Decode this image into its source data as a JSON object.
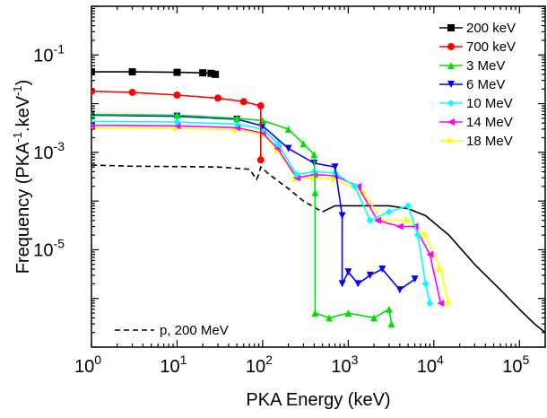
{
  "chart_data": {
    "type": "line",
    "title": "",
    "xlabel": "PKA Energy (keV)",
    "ylabel": {
      "before": "Frequency (PKA",
      "sup1": "-1",
      "middle": ".keV",
      "sup2": "-1",
      "after": ")"
    },
    "xscale": "log",
    "yscale": "log",
    "xlim": [
      1,
      200000
    ],
    "ylim": [
      1e-07,
      1
    ],
    "x_ticks": [
      {
        "value": 1,
        "base": "10",
        "exp": "0"
      },
      {
        "value": 10,
        "base": "10",
        "exp": "1"
      },
      {
        "value": 100,
        "base": "10",
        "exp": "2"
      },
      {
        "value": 1000,
        "base": "10",
        "exp": "3"
      },
      {
        "value": 10000,
        "base": "10",
        "exp": "4"
      },
      {
        "value": 100000,
        "base": "10",
        "exp": "5"
      }
    ],
    "y_ticks": [
      {
        "value": 0.1,
        "base": "10",
        "exp": "-1"
      },
      {
        "value": 0.001,
        "base": "10",
        "exp": "-3"
      },
      {
        "value": 1e-05,
        "base": "10",
        "exp": "-5"
      }
    ],
    "legend_position": "top-right",
    "series": [
      {
        "name": "200 keV",
        "color": "#000000",
        "marker": "square",
        "points": [
          [
            1,
            0.045
          ],
          [
            3,
            0.045
          ],
          [
            10,
            0.044
          ],
          [
            20,
            0.043
          ],
          [
            25,
            0.042
          ],
          [
            28,
            0.04
          ]
        ]
      },
      {
        "name": "700 keV",
        "color": "#ff0000",
        "marker": "circle",
        "points": [
          [
            1,
            0.018
          ],
          [
            3,
            0.017
          ],
          [
            10,
            0.015
          ],
          [
            30,
            0.013
          ],
          [
            60,
            0.011
          ],
          [
            95,
            0.009
          ],
          [
            95,
            0.0007
          ]
        ]
      },
      {
        "name": "3 MeV",
        "color": "#00e000",
        "marker": "triangle-up",
        "points": [
          [
            1,
            0.006
          ],
          [
            10,
            0.0058
          ],
          [
            50,
            0.005
          ],
          [
            100,
            0.0045
          ],
          [
            200,
            0.003
          ],
          [
            300,
            0.0015
          ],
          [
            400,
            0.0009
          ],
          [
            410,
            0.00015
          ],
          [
            410,
            5e-07
          ],
          [
            600,
            4e-07
          ],
          [
            1000,
            5e-07
          ],
          [
            2000,
            4e-07
          ],
          [
            3000,
            6e-07
          ],
          [
            3200,
            3e-07
          ]
        ]
      },
      {
        "name": "6 MeV",
        "color": "#0000ff",
        "marker": "triangle-down",
        "points": [
          [
            1,
            0.0058
          ],
          [
            10,
            0.0055
          ],
          [
            50,
            0.0048
          ],
          [
            100,
            0.0035
          ],
          [
            200,
            0.0012
          ],
          [
            400,
            0.0006
          ],
          [
            700,
            0.0005
          ],
          [
            850,
            5e-05
          ],
          [
            850,
            2e-06
          ],
          [
            1000,
            3.5e-06
          ],
          [
            1300,
            2e-06
          ],
          [
            1800,
            3e-06
          ],
          [
            2500,
            4e-06
          ],
          [
            4000,
            1.5e-06
          ],
          [
            6000,
            2.5e-06
          ]
        ]
      },
      {
        "name": "10 MeV",
        "color": "#00ffff",
        "marker": "diamond",
        "points": [
          [
            1,
            0.0043
          ],
          [
            10,
            0.0042
          ],
          [
            50,
            0.0038
          ],
          [
            100,
            0.003
          ],
          [
            150,
            0.0015
          ],
          [
            250,
            0.00035
          ],
          [
            400,
            0.0004
          ],
          [
            700,
            0.00038
          ],
          [
            1200,
            0.0002
          ],
          [
            1800,
            4e-05
          ],
          [
            3000,
            6e-05
          ],
          [
            5000,
            8e-05
          ],
          [
            6500,
            2e-05
          ],
          [
            8000,
            2e-06
          ],
          [
            9000,
            8e-07
          ]
        ]
      },
      {
        "name": "14 MeV",
        "color": "#ff00ff",
        "marker": "triangle-left",
        "points": [
          [
            1,
            0.0036
          ],
          [
            10,
            0.0035
          ],
          [
            50,
            0.0032
          ],
          [
            100,
            0.0025
          ],
          [
            150,
            0.0012
          ],
          [
            250,
            0.0003
          ],
          [
            400,
            0.00035
          ],
          [
            700,
            0.00033
          ],
          [
            1300,
            0.0002
          ],
          [
            2200,
            4e-05
          ],
          [
            4000,
            3e-05
          ],
          [
            6000,
            3e-05
          ],
          [
            9000,
            8e-06
          ],
          [
            12000,
            8e-07
          ]
        ]
      },
      {
        "name": "18 MeV",
        "color": "#ffff00",
        "marker": "triangle-right",
        "points": [
          [
            1,
            0.0032
          ],
          [
            10,
            0.0031
          ],
          [
            50,
            0.0029
          ],
          [
            100,
            0.0023
          ],
          [
            150,
            0.0011
          ],
          [
            250,
            0.00028
          ],
          [
            400,
            0.0003
          ],
          [
            700,
            0.00028
          ],
          [
            1500,
            0.00015
          ],
          [
            2500,
            4e-05
          ],
          [
            5000,
            4e-05
          ],
          [
            8000,
            2e-05
          ],
          [
            12000,
            4e-06
          ],
          [
            15000,
            8e-07
          ]
        ]
      },
      {
        "name": "p, 200 MeV",
        "color": "#000000",
        "marker": "none",
        "dash": true,
        "points": [
          [
            1,
            0.00055
          ],
          [
            3,
            0.00052
          ],
          [
            10,
            0.00051
          ],
          [
            30,
            0.0005
          ],
          [
            70,
            0.00045
          ],
          [
            85,
            0.00028
          ],
          [
            90,
            0.00035
          ],
          [
            95,
            0.0005
          ],
          [
            120,
            0.00035
          ],
          [
            200,
            0.00018
          ],
          [
            300,
            0.0001
          ],
          [
            500,
            6e-05
          ]
        ]
      },
      {
        "name": "p, 200 MeV solid tail",
        "label_hidden": true,
        "color": "#000000",
        "marker": "none",
        "points": [
          [
            500,
            6e-05
          ],
          [
            700,
            8e-05
          ],
          [
            1000,
            8e-05
          ],
          [
            3000,
            8e-05
          ],
          [
            5000,
            7e-05
          ],
          [
            8000,
            5e-05
          ],
          [
            15000,
            2e-05
          ],
          [
            30000,
            5e-06
          ],
          [
            60000,
            1.5e-06
          ],
          [
            100000,
            6e-07
          ],
          [
            150000,
            3e-07
          ],
          [
            200000,
            2e-07
          ]
        ]
      }
    ]
  }
}
